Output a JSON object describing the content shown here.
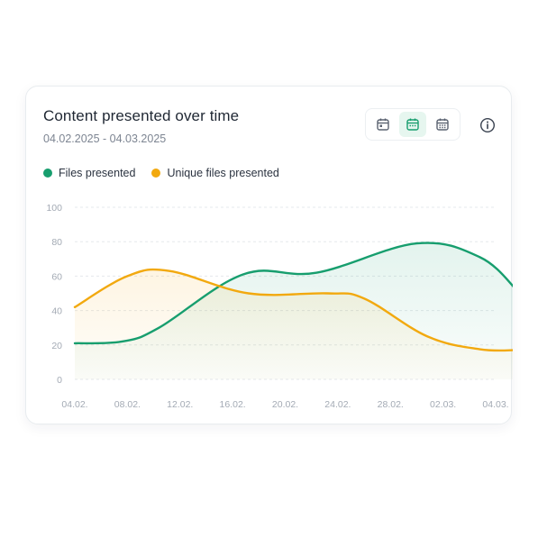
{
  "card": {
    "title": "Content presented over time",
    "date_range": "04.02.2025 - 04.03.2025"
  },
  "toolbar": {
    "buttons": [
      {
        "icon": "calendar-day-icon",
        "active": false
      },
      {
        "icon": "calendar-week-icon",
        "active": true
      },
      {
        "icon": "calendar-month-icon",
        "active": false
      }
    ],
    "info_icon": "info-icon"
  },
  "colors": {
    "files": "#179e6e",
    "unique": "#f2a90f",
    "grid": "#e5e8ec"
  },
  "chart_data": {
    "type": "area",
    "x": [
      "04.02.",
      "08.02.",
      "12.02.",
      "16.02.",
      "20.02.",
      "24.02.",
      "28.02.",
      "02.03.",
      "04.03."
    ],
    "ylim": [
      0,
      100
    ],
    "yticks": [
      0,
      20,
      40,
      60,
      80,
      100
    ],
    "grid": true,
    "legend": "top-left",
    "series": [
      {
        "name": "Files presented",
        "color": "#179e6e",
        "points": [
          [
            0,
            21
          ],
          [
            0.9,
            22
          ],
          [
            1.6,
            30
          ],
          [
            3.2,
            61
          ],
          [
            4.6,
            62
          ],
          [
            6.5,
            79
          ],
          [
            7.7,
            71
          ],
          [
            8.4,
            52
          ]
        ]
      },
      {
        "name": "Unique files presented",
        "color": "#f2a90f",
        "points": [
          [
            0,
            42
          ],
          [
            1.0,
            60
          ],
          [
            1.8,
            63
          ],
          [
            3.3,
            50
          ],
          [
            4.8,
            50
          ],
          [
            5.5,
            47
          ],
          [
            6.7,
            25
          ],
          [
            7.7,
            17.5
          ],
          [
            8.4,
            17
          ]
        ]
      }
    ]
  }
}
